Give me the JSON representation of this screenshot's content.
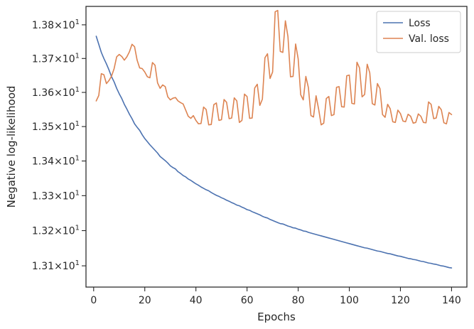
{
  "chart_data": {
    "type": "line",
    "xlabel": "Epochs",
    "ylabel": "Negative log-likelihood",
    "xlim": [
      -3,
      146
    ],
    "ylim": [
      13.04,
      13.855
    ],
    "yscale": "log",
    "grid": false,
    "legend_position": "top-right",
    "x_ticks": [
      0,
      20,
      40,
      60,
      80,
      100,
      120,
      140
    ],
    "x_tick_labels": [
      "0",
      "20",
      "40",
      "60",
      "80",
      "100",
      "120",
      "140"
    ],
    "y_ticks": [
      13.1,
      13.2,
      13.3,
      13.4,
      13.5,
      13.6,
      13.7,
      13.8
    ],
    "y_tick_mantissas": [
      "1.31",
      "1.32",
      "1.33",
      "1.34",
      "1.35",
      "1.36",
      "1.37",
      "1.38"
    ],
    "y_tick_base": "10",
    "y_tick_exponent": "1",
    "series": [
      {
        "name": "Loss",
        "color": "#4c72b0",
        "x": [
          1,
          2,
          3,
          4,
          5,
          6,
          7,
          8,
          9,
          10,
          11,
          12,
          13,
          14,
          15,
          16,
          17,
          18,
          19,
          20,
          21,
          22,
          23,
          24,
          25,
          26,
          27,
          28,
          29,
          30,
          31,
          32,
          33,
          34,
          35,
          36,
          37,
          38,
          39,
          40,
          41,
          42,
          43,
          44,
          45,
          46,
          47,
          48,
          49,
          50,
          51,
          52,
          53,
          54,
          55,
          56,
          57,
          58,
          59,
          60,
          61,
          62,
          63,
          64,
          65,
          66,
          67,
          68,
          69,
          70,
          71,
          72,
          73,
          74,
          75,
          76,
          77,
          78,
          79,
          80,
          81,
          82,
          83,
          84,
          85,
          86,
          87,
          88,
          89,
          90,
          91,
          92,
          93,
          94,
          95,
          96,
          97,
          98,
          99,
          100,
          101,
          102,
          103,
          104,
          105,
          106,
          107,
          108,
          109,
          110,
          111,
          112,
          113,
          114,
          115,
          116,
          117,
          118,
          119,
          120,
          121,
          122,
          123,
          124,
          125,
          126,
          127,
          128,
          129,
          130,
          131,
          132,
          133,
          134,
          135,
          136,
          137,
          138,
          139,
          140
        ],
        "values": [
          13.766,
          13.742,
          13.718,
          13.7,
          13.684,
          13.666,
          13.646,
          13.631,
          13.612,
          13.596,
          13.582,
          13.565,
          13.551,
          13.536,
          13.523,
          13.508,
          13.498,
          13.489,
          13.476,
          13.465,
          13.456,
          13.447,
          13.439,
          13.431,
          13.423,
          13.413,
          13.407,
          13.401,
          13.394,
          13.386,
          13.381,
          13.377,
          13.369,
          13.364,
          13.358,
          13.354,
          13.348,
          13.344,
          13.339,
          13.334,
          13.33,
          13.325,
          13.321,
          13.317,
          13.314,
          13.309,
          13.305,
          13.301,
          13.298,
          13.294,
          13.291,
          13.287,
          13.284,
          13.28,
          13.277,
          13.273,
          13.271,
          13.267,
          13.264,
          13.26,
          13.258,
          13.254,
          13.251,
          13.248,
          13.245,
          13.241,
          13.238,
          13.236,
          13.232,
          13.229,
          13.226,
          13.223,
          13.22,
          13.219,
          13.216,
          13.213,
          13.211,
          13.208,
          13.207,
          13.204,
          13.202,
          13.199,
          13.198,
          13.195,
          13.193,
          13.191,
          13.189,
          13.187,
          13.185,
          13.183,
          13.181,
          13.179,
          13.177,
          13.175,
          13.173,
          13.171,
          13.169,
          13.167,
          13.165,
          13.163,
          13.161,
          13.159,
          13.157,
          13.155,
          13.153,
          13.151,
          13.15,
          13.148,
          13.146,
          13.144,
          13.142,
          13.141,
          13.139,
          13.137,
          13.135,
          13.134,
          13.132,
          13.13,
          13.128,
          13.127,
          13.125,
          13.123,
          13.121,
          13.12,
          13.118,
          13.117,
          13.115,
          13.113,
          13.112,
          13.11,
          13.108,
          13.107,
          13.105,
          13.104,
          13.102,
          13.1,
          13.099,
          13.097,
          13.095,
          13.094
        ]
      },
      {
        "name": "Val. loss",
        "color": "#dd8452",
        "x": [
          1,
          2,
          3,
          4,
          5,
          6,
          7,
          8,
          9,
          10,
          11,
          12,
          13,
          14,
          15,
          16,
          17,
          18,
          19,
          20,
          21,
          22,
          23,
          24,
          25,
          26,
          27,
          28,
          29,
          30,
          31,
          32,
          33,
          34,
          35,
          36,
          37,
          38,
          39,
          40,
          41,
          42,
          43,
          44,
          45,
          46,
          47,
          48,
          49,
          50,
          51,
          52,
          53,
          54,
          55,
          56,
          57,
          58,
          59,
          60,
          61,
          62,
          63,
          64,
          65,
          66,
          67,
          68,
          69,
          70,
          71,
          72,
          73,
          74,
          75,
          76,
          77,
          78,
          79,
          80,
          81,
          82,
          83,
          84,
          85,
          86,
          87,
          88,
          89,
          90,
          91,
          92,
          93,
          94,
          95,
          96,
          97,
          98,
          99,
          100,
          101,
          102,
          103,
          104,
          105,
          106,
          107,
          108,
          109,
          110,
          111,
          112,
          113,
          114,
          115,
          116,
          117,
          118,
          119,
          120,
          121,
          122,
          123,
          124,
          125,
          126,
          127,
          128,
          129,
          130,
          131,
          132,
          133,
          134,
          135,
          136,
          137,
          138,
          139,
          140
        ],
        "values": [
          13.575,
          13.591,
          13.655,
          13.652,
          13.626,
          13.635,
          13.648,
          13.67,
          13.705,
          13.712,
          13.706,
          13.695,
          13.705,
          13.72,
          13.742,
          13.735,
          13.695,
          13.672,
          13.67,
          13.66,
          13.646,
          13.643,
          13.688,
          13.68,
          13.628,
          13.612,
          13.622,
          13.617,
          13.587,
          13.578,
          13.583,
          13.585,
          13.575,
          13.57,
          13.566,
          13.548,
          13.53,
          13.524,
          13.532,
          13.518,
          13.508,
          13.509,
          13.557,
          13.55,
          13.505,
          13.506,
          13.564,
          13.569,
          13.518,
          13.52,
          13.579,
          13.571,
          13.523,
          13.525,
          13.584,
          13.575,
          13.512,
          13.518,
          13.595,
          13.588,
          13.524,
          13.525,
          13.613,
          13.624,
          13.562,
          13.58,
          13.702,
          13.714,
          13.641,
          13.66,
          13.839,
          13.843,
          13.721,
          13.718,
          13.812,
          13.765,
          13.646,
          13.647,
          13.743,
          13.699,
          13.593,
          13.578,
          13.647,
          13.614,
          13.532,
          13.528,
          13.59,
          13.551,
          13.505,
          13.51,
          13.582,
          13.588,
          13.532,
          13.535,
          13.615,
          13.617,
          13.558,
          13.557,
          13.649,
          13.651,
          13.568,
          13.566,
          13.689,
          13.672,
          13.587,
          13.594,
          13.683,
          13.658,
          13.567,
          13.563,
          13.626,
          13.611,
          13.535,
          13.527,
          13.565,
          13.552,
          13.514,
          13.512,
          13.548,
          13.538,
          13.516,
          13.514,
          13.536,
          13.53,
          13.51,
          13.512,
          13.537,
          13.53,
          13.512,
          13.511,
          13.572,
          13.565,
          13.523,
          13.525,
          13.559,
          13.549,
          13.511,
          13.508,
          13.541,
          13.535
        ]
      }
    ]
  }
}
